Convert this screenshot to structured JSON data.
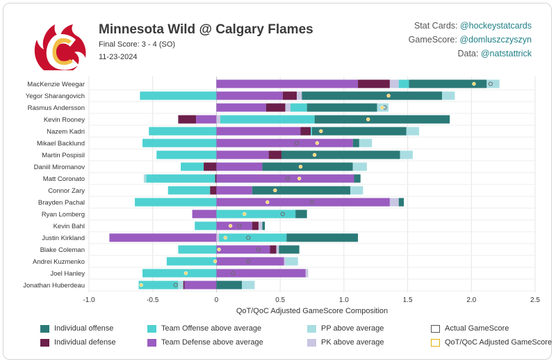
{
  "header": {
    "title": "Minnesota Wild @ Calgary Flames",
    "final_score": "Final Score: 3 - 4 (SO)",
    "date": "11-23-2024"
  },
  "credits": [
    {
      "label": "Stat Cards:",
      "handle": "@hockeystatcards"
    },
    {
      "label": "GameScore:",
      "handle": "@domluszczyszyn"
    },
    {
      "label": "Data:",
      "handle": "@natstattrick"
    }
  ],
  "colors": {
    "individual_offense": "#2b7a78",
    "individual_defense": "#6b1f4a",
    "team_offense": "#4fd1d1",
    "team_defense": "#9a5cc0",
    "pp": "#a9dde2",
    "pk": "#c8c6e2",
    "qot_marker": "#f5d76e",
    "actual_marker": "#6a6a6a"
  },
  "chart_data": {
    "type": "bar",
    "orientation": "horizontal-stacked",
    "xlabel": "QoT/QoC Adjusted GameScore Composition",
    "xlim": [
      -1.0,
      2.5
    ],
    "xticks": [
      "-1.0",
      "-0.5",
      "0",
      "0.5",
      "1.0",
      "1.5",
      "2.0",
      "2.5"
    ],
    "grid": true,
    "legend": [
      {
        "key": "ind_off",
        "label": "Individual offense",
        "shape": "box"
      },
      {
        "key": "team_off",
        "label": "Team Offense above average",
        "shape": "box"
      },
      {
        "key": "pp",
        "label": "PP above average",
        "shape": "box"
      },
      {
        "key": "actual",
        "label": "Actual GameScore",
        "shape": "outline"
      },
      {
        "key": "ind_def",
        "label": "Individual defense",
        "shape": "box"
      },
      {
        "key": "team_def",
        "label": "Team Defense above average",
        "shape": "box"
      },
      {
        "key": "pk",
        "label": "PK above average",
        "shape": "box"
      },
      {
        "key": "qot",
        "label": "QoT/QoC Adjusted GameScore",
        "shape": "outline-yellow"
      }
    ],
    "players": [
      {
        "name": "MacKenzie Weegar",
        "segments": [
          [
            "team_def",
            0,
            1.11
          ],
          [
            "ind_def",
            1.11,
            1.36
          ],
          [
            "pk",
            1.36,
            1.43
          ],
          [
            "team_off",
            1.43,
            1.51
          ],
          [
            "ind_off",
            1.51,
            2.12
          ],
          [
            "pp",
            2.12,
            2.22
          ]
        ],
        "qot": 2.02,
        "actual": 2.15
      },
      {
        "name": "Yegor Sharangovich",
        "segments": [
          [
            "team_off",
            -0.6,
            0
          ],
          [
            "team_def",
            0,
            0.52
          ],
          [
            "ind_def",
            0.52,
            0.63
          ],
          [
            "pk",
            0.63,
            0.67
          ],
          [
            "ind_off",
            0.67,
            1.77
          ],
          [
            "pp",
            1.77,
            1.87
          ]
        ],
        "qot": 1.35,
        "actual": 1.35
      },
      {
        "name": "Rasmus Andersson",
        "segments": [
          [
            "team_def",
            0,
            0.39
          ],
          [
            "ind_def",
            0.39,
            0.54
          ],
          [
            "pk",
            0.54,
            0.58
          ],
          [
            "team_off",
            0.58,
            0.71
          ],
          [
            "ind_off",
            0.71,
            1.26
          ],
          [
            "pp",
            1.26,
            1.35
          ]
        ],
        "qot": 1.3,
        "actual": 1.32
      },
      {
        "name": "Kevin Rooney",
        "segments": [
          [
            "ind_def",
            -0.3,
            -0.16
          ],
          [
            "team_def",
            -0.16,
            0
          ],
          [
            "pk",
            0,
            0.03
          ],
          [
            "team_off",
            0.03,
            0.77
          ],
          [
            "ind_off",
            0.77,
            1.83
          ]
        ],
        "qot": 1.19,
        "actual": 1.19
      },
      {
        "name": "Nazem Kadri",
        "segments": [
          [
            "team_off",
            -0.53,
            0
          ],
          [
            "team_def",
            0,
            0.66
          ],
          [
            "ind_def",
            0.66,
            0.74
          ],
          [
            "team_off",
            0.74,
            0.75
          ],
          [
            "ind_off",
            0.75,
            1.49
          ],
          [
            "pp",
            1.49,
            1.59
          ]
        ],
        "qot": 0.82,
        "actual": 0.82
      },
      {
        "name": "Mikael Backlund",
        "segments": [
          [
            "team_off",
            -0.58,
            0
          ],
          [
            "team_def",
            0,
            1.07
          ],
          [
            "ind_off",
            1.07,
            1.12
          ],
          [
            "pp",
            1.12,
            1.22
          ]
        ],
        "qot": 0.79,
        "actual": 0.63
      },
      {
        "name": "Martin Pospisil",
        "segments": [
          [
            "team_off",
            -0.47,
            0
          ],
          [
            "team_def",
            0,
            0.41
          ],
          [
            "ind_def",
            0.41,
            0.51
          ],
          [
            "ind_off",
            0.51,
            1.44
          ],
          [
            "pp",
            1.44,
            1.54
          ]
        ],
        "qot": 0.77,
        "actual": 0.77
      },
      {
        "name": "Daniil Miromanov",
        "segments": [
          [
            "team_off",
            -0.28,
            -0.1
          ],
          [
            "ind_def",
            -0.1,
            0
          ],
          [
            "team_def",
            0,
            0.36
          ],
          [
            "ind_off",
            0.36,
            1.07
          ],
          [
            "pp",
            1.07,
            1.18
          ]
        ],
        "qot": 0.66,
        "actual": 0.66
      },
      {
        "name": "Matt Coronato",
        "segments": [
          [
            "pp",
            -0.57,
            -0.55
          ],
          [
            "team_off",
            -0.55,
            -0.01
          ],
          [
            "ind_def",
            -0.01,
            0
          ],
          [
            "team_def",
            0,
            1.08
          ],
          [
            "ind_off",
            1.08,
            1.13
          ]
        ],
        "qot": 0.65,
        "actual": 0.56
      },
      {
        "name": "Connor Zary",
        "segments": [
          [
            "team_off",
            -0.38,
            -0.05
          ],
          [
            "ind_def",
            -0.05,
            0
          ],
          [
            "team_def",
            0,
            0.28
          ],
          [
            "ind_off",
            0.28,
            1.05
          ],
          [
            "pp",
            1.05,
            1.15
          ]
        ],
        "qot": 0.46,
        "actual": 0.46
      },
      {
        "name": "Brayden Pachal",
        "segments": [
          [
            "team_off",
            -0.64,
            0
          ],
          [
            "team_def",
            0,
            1.36
          ],
          [
            "pk",
            1.36,
            1.43
          ],
          [
            "ind_off",
            1.43,
            1.47
          ]
        ],
        "qot": 0.4,
        "actual": 0.75
      },
      {
        "name": "Ryan Lomberg",
        "segments": [
          [
            "team_def",
            -0.19,
            0
          ],
          [
            "team_off",
            0,
            0.62
          ],
          [
            "ind_off",
            0.62,
            0.71
          ]
        ],
        "qot": 0.22,
        "actual": 0.52
      },
      {
        "name": "Kevin Bahl",
        "segments": [
          [
            "team_off",
            -0.17,
            0
          ],
          [
            "team_def",
            0,
            0.28
          ],
          [
            "ind_def",
            0.28,
            0.33
          ],
          [
            "pk",
            0.33,
            0.36
          ],
          [
            "ind_off",
            0.36,
            0.38
          ]
        ],
        "qot": 0.11,
        "actual": 0.18
      },
      {
        "name": "Justin Kirkland",
        "segments": [
          [
            "team_def",
            -0.84,
            0
          ],
          [
            "pk",
            0,
            0.02
          ],
          [
            "team_off",
            0.02,
            0.55
          ],
          [
            "ind_off",
            0.55,
            1.11
          ]
        ],
        "qot": 0.07,
        "actual": 0.25
      },
      {
        "name": "Blake Coleman",
        "segments": [
          [
            "team_off",
            -0.3,
            0
          ],
          [
            "team_def",
            0,
            0.42
          ],
          [
            "ind_def",
            0.42,
            0.47
          ],
          [
            "pk",
            0.47,
            0.49
          ],
          [
            "ind_off",
            0.49,
            0.65
          ]
        ],
        "qot": 0.02,
        "actual": 0.33
      },
      {
        "name": "Andrei Kuzmenko",
        "segments": [
          [
            "team_off",
            -0.39,
            0
          ],
          [
            "team_def",
            0,
            0.53
          ],
          [
            "pk",
            0.53,
            0.54
          ],
          [
            "pp",
            0.54,
            0.64
          ]
        ],
        "qot": -0.01,
        "actual": 0.25
      },
      {
        "name": "Joel Hanley",
        "segments": [
          [
            "team_off",
            -0.58,
            0
          ],
          [
            "team_def",
            0,
            0.7
          ],
          [
            "pk",
            0.7,
            0.72
          ]
        ],
        "qot": -0.24,
        "actual": 0.13
      },
      {
        "name": "Jonathan Huberdeau",
        "segments": [
          [
            "team_off",
            -0.61,
            -0.3
          ],
          [
            "pp",
            -0.3,
            -0.26
          ],
          [
            "ind_def",
            -0.26,
            -0.25
          ],
          [
            "team_def",
            -0.25,
            0
          ],
          [
            "ind_off",
            0,
            0.2
          ],
          [
            "pp",
            0.2,
            0.3
          ]
        ],
        "qot": -0.59,
        "actual": -0.32
      }
    ]
  }
}
